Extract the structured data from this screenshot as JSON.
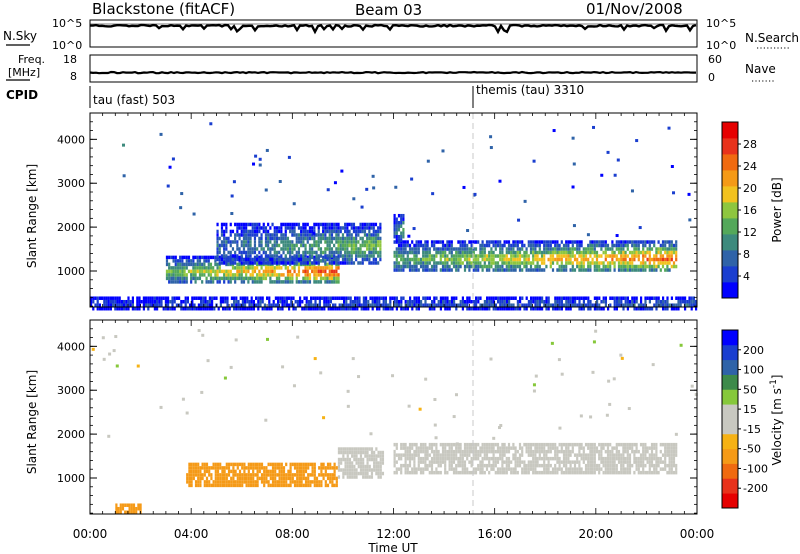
{
  "header": {
    "station": "Blackstone (fitACF)",
    "beam": "Beam 03",
    "date": "01/Nov/2008"
  },
  "strip_nsky": {
    "left_label": "N.Sky",
    "left_ticks": [
      "10^5",
      "10^0"
    ],
    "right_label": "N.Search",
    "right_ticks": [
      "10^5",
      "10^0"
    ]
  },
  "strip_freq": {
    "left_label_1": "Freq.",
    "left_label_2": "[MHz]",
    "left_ticks": [
      "18",
      "8"
    ],
    "right_label": "Nave",
    "right_ticks": [
      "60",
      "0"
    ]
  },
  "strip_cpid": {
    "label": "CPID",
    "segments": [
      {
        "name": "tau (fast) 503",
        "start_hour": 0
      },
      {
        "name": "themis (tau) 3310",
        "start_hour": 15.25
      }
    ]
  },
  "chart_data": [
    {
      "type": "heatmap",
      "title": "",
      "quantity": "Power",
      "ylabel": "Slant Range [km]",
      "xlabel": "",
      "x_range_hours": [
        0,
        24
      ],
      "ylim": [
        180,
        4600
      ],
      "yticks": [
        1000,
        2000,
        3000,
        4000
      ],
      "colorbar": {
        "label": "Power [dB]",
        "range": [
          0,
          32
        ],
        "ticks": [
          "4",
          "8",
          "12",
          "16",
          "20",
          "24",
          "28"
        ],
        "colors": [
          "#0000ff",
          "#1a3ecf",
          "#2f63a8",
          "#3d8a7d",
          "#54a85a",
          "#8ec63f",
          "#f2c21f",
          "#f59a17",
          "#f06a10",
          "#e8321b",
          "#e60000"
        ]
      },
      "echo_regions": [
        {
          "x0": 3.0,
          "x1": 9.8,
          "y0": 750,
          "y1": 1350,
          "peak_db": 26
        },
        {
          "x0": 5.0,
          "x1": 11.5,
          "y0": 1200,
          "y1": 2100,
          "peak_db": 14
        },
        {
          "x0": 12.0,
          "x1": 23.2,
          "y0": 1000,
          "y1": 1700,
          "peak_db": 24
        },
        {
          "x0": 12.0,
          "x1": 12.4,
          "y0": 1700,
          "y1": 2300,
          "peak_db": 12
        },
        {
          "x0": 0.0,
          "x1": 24.0,
          "y0": 180,
          "y1": 420,
          "peak_db": 8
        }
      ],
      "xticks": [
        "00:00",
        "04:00",
        "08:00",
        "12:00",
        "16:00",
        "20:00",
        "00:00"
      ]
    },
    {
      "type": "heatmap",
      "title": "",
      "quantity": "Velocity",
      "ylabel": "Slant Range [km]",
      "xlabel": "Time UT",
      "x_range_hours": [
        0,
        24
      ],
      "ylim": [
        180,
        4600
      ],
      "yticks": [
        1000,
        2000,
        3000,
        4000
      ],
      "colorbar": {
        "label": "Velocity [m s^-1]",
        "range": [
          -250,
          250
        ],
        "ticks": [
          "200",
          "100",
          "50",
          "15",
          "-15",
          "-50",
          "-100",
          "-200"
        ],
        "colors": [
          "#e60000",
          "#e8321b",
          "#f06a10",
          "#f59a17",
          "#f6b214",
          "#c8c8c0",
          "#c8c8c0",
          "#86c83a",
          "#3d8a4a",
          "#2f63a8",
          "#1a3ecf",
          "#0000ff"
        ]
      },
      "echo_regions": [
        {
          "x0": 3.8,
          "x1": 9.8,
          "y0": 800,
          "y1": 1350,
          "velocity": -60
        },
        {
          "x0": 9.8,
          "x1": 11.6,
          "y0": 1000,
          "y1": 1700,
          "velocity": 0
        },
        {
          "x0": 12.0,
          "x1": 23.2,
          "y0": 1100,
          "y1": 1800,
          "velocity": 0
        },
        {
          "x0": 1.0,
          "x1": 2.0,
          "y0": 250,
          "y1": 420,
          "velocity": -60
        }
      ],
      "xticks": [
        "00:00",
        "04:00",
        "08:00",
        "12:00",
        "16:00",
        "20:00",
        "00:00"
      ]
    }
  ]
}
